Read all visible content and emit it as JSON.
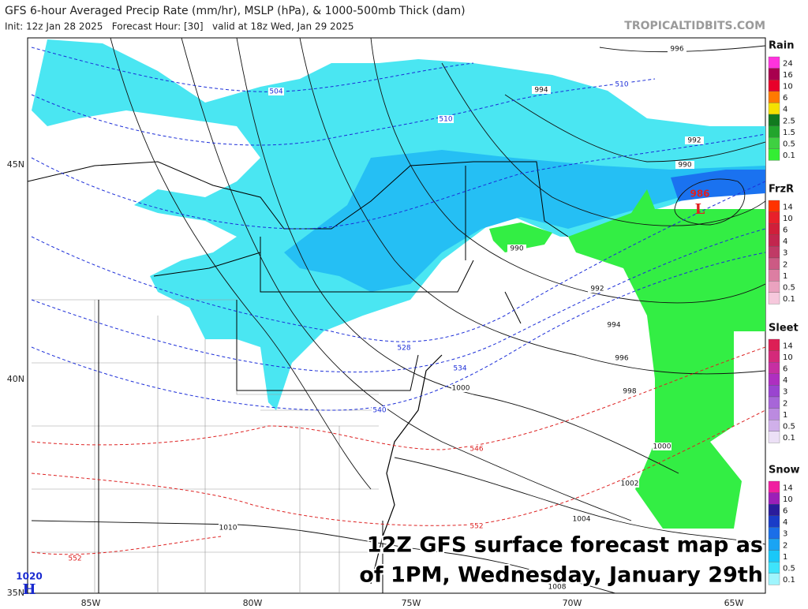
{
  "header": {
    "title": "GFS 6-hour Averaged Precip Rate (mm/hr), MSLP (hPa), & 1000-500mb Thick (dam)",
    "subtitle": "Init: 12z Jan 28 2025   Forecast Hour: [30]   valid at 18z Wed, Jan 29 2025",
    "site": "TROPICALTIDBITS.COM"
  },
  "legend": [
    {
      "title": "Rain",
      "labels": [
        24,
        16,
        10,
        6,
        4,
        2.5,
        1.5,
        0.5,
        0.1
      ],
      "colors": [
        "#ff33dd",
        "#a8004e",
        "#e8002a",
        "#ff7a00",
        "#f5e100",
        "#117a1e",
        "#22a52c",
        "#3fd041",
        "#33ee33"
      ]
    },
    {
      "title": "FrzR",
      "labels": [
        14,
        10,
        6,
        4,
        3,
        2,
        1,
        0.5,
        0.1
      ],
      "colors": [
        "#ff3300",
        "#e8202a",
        "#d01f3a",
        "#c2264e",
        "#c03a66",
        "#cc5a84",
        "#dc7ea2",
        "#eaa2bf",
        "#f6c8dc"
      ]
    },
    {
      "title": "Sleet",
      "labels": [
        14,
        10,
        6,
        4,
        3,
        2,
        1,
        0.5,
        0.1
      ],
      "colors": [
        "#dd1f55",
        "#d42a7a",
        "#c62fa2",
        "#ae2fc0",
        "#9a44d0",
        "#a766d8",
        "#bb8ae0",
        "#d0b0ea",
        "#ece0f6"
      ]
    },
    {
      "title": "Snow",
      "labels": [
        14,
        10,
        6,
        4,
        3,
        2,
        1,
        0.5,
        0.1
      ],
      "colors": [
        "#f01fa0",
        "#9b1fb8",
        "#2a1c9c",
        "#1a3cc8",
        "#1a6ee8",
        "#1aa4f4",
        "#19c8f8",
        "#3ee4fb",
        "#9ff5fd"
      ]
    }
  ],
  "axes": {
    "lat_labels": [
      "45N",
      "40N",
      "35N"
    ],
    "lon_labels": [
      "85W",
      "80W",
      "75W",
      "70W",
      "65W"
    ]
  },
  "map": {
    "isobar_labels": [
      996,
      994,
      992,
      990,
      990,
      992,
      994,
      996,
      998,
      1000,
      1000,
      1002,
      1004,
      1010,
      1008
    ],
    "thickness_labels_cold": [
      504,
      510,
      510,
      528,
      534,
      540
    ],
    "thickness_labels_warm": [
      546,
      552,
      552
    ],
    "low": {
      "symbol": "L",
      "pressure": 986
    },
    "high": {
      "symbol": "H",
      "pressure": 1020
    }
  },
  "caption": [
    "12Z GFS surface forecast map as",
    "of 1PM, Wednesday, January 29th"
  ]
}
